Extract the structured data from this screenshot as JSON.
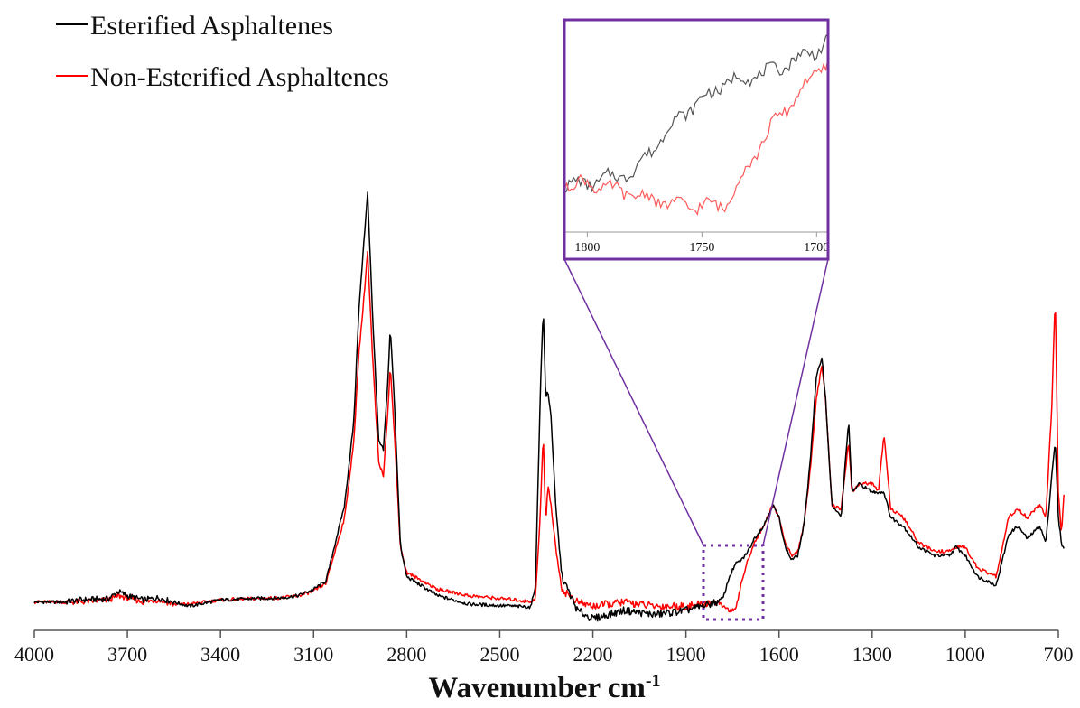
{
  "chart_data": {
    "type": "line",
    "title": "",
    "xlabel": "Wavenumber cm",
    "xlabel_sup": "-1",
    "ylabel": "",
    "xlim": [
      4000,
      700
    ],
    "x_reversed": true,
    "ylim": [
      0,
      1
    ],
    "grid": false,
    "legend_position": "top-left",
    "x_ticks": [
      4000,
      3700,
      3400,
      3100,
      2800,
      2500,
      2200,
      1900,
      1600,
      1300,
      1000,
      700
    ],
    "series": [
      {
        "name": "Esterified Asphaltenes",
        "color": "#000000",
        "points": [
          [
            4000,
            0.02
          ],
          [
            3900,
            0.02
          ],
          [
            3850,
            0.025
          ],
          [
            3760,
            0.028
          ],
          [
            3730,
            0.045
          ],
          [
            3700,
            0.035
          ],
          [
            3650,
            0.025
          ],
          [
            3600,
            0.03
          ],
          [
            3550,
            0.02
          ],
          [
            3500,
            0.01
          ],
          [
            3400,
            0.025
          ],
          [
            3300,
            0.028
          ],
          [
            3200,
            0.03
          ],
          [
            3150,
            0.035
          ],
          [
            3100,
            0.05
          ],
          [
            3060,
            0.07
          ],
          [
            3000,
            0.25
          ],
          [
            2970,
            0.45
          ],
          [
            2955,
            0.7
          ],
          [
            2940,
            0.85
          ],
          [
            2926,
            0.99
          ],
          [
            2910,
            0.7
          ],
          [
            2890,
            0.4
          ],
          [
            2875,
            0.38
          ],
          [
            2860,
            0.55
          ],
          [
            2853,
            0.67
          ],
          [
            2840,
            0.5
          ],
          [
            2820,
            0.15
          ],
          [
            2800,
            0.08
          ],
          [
            2700,
            0.035
          ],
          [
            2600,
            0.015
          ],
          [
            2450,
            0.01
          ],
          [
            2400,
            0.008
          ],
          [
            2385,
            0.06
          ],
          [
            2370,
            0.5
          ],
          [
            2360,
            0.72
          ],
          [
            2352,
            0.5
          ],
          [
            2345,
            0.52
          ],
          [
            2335,
            0.46
          ],
          [
            2320,
            0.25
          ],
          [
            2300,
            0.08
          ],
          [
            2250,
            0.0
          ],
          [
            2200,
            -0.02
          ],
          [
            2100,
            0.0
          ],
          [
            2000,
            -0.01
          ],
          [
            1900,
            0.0
          ],
          [
            1850,
            0.01
          ],
          [
            1800,
            0.02
          ],
          [
            1780,
            0.03
          ],
          [
            1760,
            0.08
          ],
          [
            1740,
            0.11
          ],
          [
            1720,
            0.12
          ],
          [
            1700,
            0.14
          ],
          [
            1680,
            0.17
          ],
          [
            1650,
            0.2
          ],
          [
            1620,
            0.25
          ],
          [
            1600,
            0.22
          ],
          [
            1580,
            0.15
          ],
          [
            1560,
            0.12
          ],
          [
            1540,
            0.13
          ],
          [
            1520,
            0.2
          ],
          [
            1500,
            0.35
          ],
          [
            1480,
            0.55
          ],
          [
            1462,
            0.6
          ],
          [
            1450,
            0.5
          ],
          [
            1430,
            0.25
          ],
          [
            1400,
            0.22
          ],
          [
            1376,
            0.45
          ],
          [
            1365,
            0.28
          ],
          [
            1340,
            0.3
          ],
          [
            1300,
            0.28
          ],
          [
            1280,
            0.28
          ],
          [
            1262,
            0.28
          ],
          [
            1240,
            0.22
          ],
          [
            1200,
            0.2
          ],
          [
            1150,
            0.15
          ],
          [
            1100,
            0.13
          ],
          [
            1050,
            0.13
          ],
          [
            1030,
            0.15
          ],
          [
            1000,
            0.13
          ],
          [
            960,
            0.08
          ],
          [
            900,
            0.06
          ],
          [
            860,
            0.18
          ],
          [
            830,
            0.2
          ],
          [
            800,
            0.17
          ],
          [
            760,
            0.2
          ],
          [
            740,
            0.16
          ],
          [
            720,
            0.33
          ],
          [
            710,
            0.4
          ],
          [
            700,
            0.22
          ],
          [
            690,
            0.16
          ],
          [
            680,
            0.14
          ]
        ]
      },
      {
        "name": "Non-Esterified Asphaltenes",
        "color": "#ff0000",
        "points": [
          [
            4000,
            0.02
          ],
          [
            3900,
            0.02
          ],
          [
            3850,
            0.02
          ],
          [
            3760,
            0.025
          ],
          [
            3730,
            0.035
          ],
          [
            3700,
            0.03
          ],
          [
            3650,
            0.02
          ],
          [
            3600,
            0.025
          ],
          [
            3550,
            0.015
          ],
          [
            3500,
            0.015
          ],
          [
            3400,
            0.025
          ],
          [
            3300,
            0.028
          ],
          [
            3200,
            0.03
          ],
          [
            3150,
            0.035
          ],
          [
            3100,
            0.045
          ],
          [
            3060,
            0.065
          ],
          [
            3000,
            0.22
          ],
          [
            2970,
            0.4
          ],
          [
            2955,
            0.6
          ],
          [
            2940,
            0.72
          ],
          [
            2926,
            0.85
          ],
          [
            2910,
            0.6
          ],
          [
            2890,
            0.35
          ],
          [
            2875,
            0.32
          ],
          [
            2860,
            0.48
          ],
          [
            2853,
            0.58
          ],
          [
            2840,
            0.42
          ],
          [
            2820,
            0.15
          ],
          [
            2800,
            0.09
          ],
          [
            2700,
            0.05
          ],
          [
            2600,
            0.035
          ],
          [
            2450,
            0.025
          ],
          [
            2400,
            0.02
          ],
          [
            2385,
            0.03
          ],
          [
            2370,
            0.22
          ],
          [
            2360,
            0.42
          ],
          [
            2352,
            0.2
          ],
          [
            2345,
            0.3
          ],
          [
            2335,
            0.25
          ],
          [
            2320,
            0.15
          ],
          [
            2300,
            0.05
          ],
          [
            2250,
            0.02
          ],
          [
            2200,
            0.01
          ],
          [
            2100,
            0.02
          ],
          [
            2000,
            0.01
          ],
          [
            1900,
            0.01
          ],
          [
            1850,
            0.015
          ],
          [
            1800,
            0.02
          ],
          [
            1780,
            0.01
          ],
          [
            1760,
            0.0
          ],
          [
            1740,
            0.0
          ],
          [
            1720,
            0.07
          ],
          [
            1700,
            0.12
          ],
          [
            1680,
            0.16
          ],
          [
            1650,
            0.2
          ],
          [
            1620,
            0.25
          ],
          [
            1600,
            0.22
          ],
          [
            1580,
            0.16
          ],
          [
            1560,
            0.13
          ],
          [
            1540,
            0.14
          ],
          [
            1520,
            0.2
          ],
          [
            1500,
            0.33
          ],
          [
            1480,
            0.5
          ],
          [
            1462,
            0.58
          ],
          [
            1450,
            0.5
          ],
          [
            1430,
            0.25
          ],
          [
            1400,
            0.24
          ],
          [
            1376,
            0.4
          ],
          [
            1365,
            0.28
          ],
          [
            1340,
            0.3
          ],
          [
            1300,
            0.3
          ],
          [
            1280,
            0.28
          ],
          [
            1262,
            0.42
          ],
          [
            1240,
            0.24
          ],
          [
            1200,
            0.22
          ],
          [
            1150,
            0.16
          ],
          [
            1100,
            0.14
          ],
          [
            1050,
            0.14
          ],
          [
            1030,
            0.15
          ],
          [
            1000,
            0.15
          ],
          [
            960,
            0.1
          ],
          [
            900,
            0.08
          ],
          [
            860,
            0.22
          ],
          [
            830,
            0.24
          ],
          [
            800,
            0.22
          ],
          [
            760,
            0.25
          ],
          [
            740,
            0.22
          ],
          [
            720,
            0.5
          ],
          [
            710,
            0.75
          ],
          [
            700,
            0.28
          ],
          [
            690,
            0.18
          ],
          [
            680,
            0.3
          ]
        ]
      }
    ],
    "inset": {
      "xlim": [
        1810,
        1695
      ],
      "x_ticks": [
        1800,
        1750,
        1700
      ],
      "frame_color": "#7030a0",
      "zoom_region_xlim": [
        1850,
        1650
      ]
    }
  }
}
